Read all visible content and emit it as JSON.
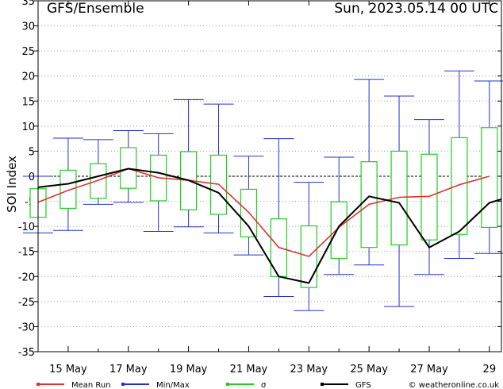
{
  "header": {
    "title": "GFS/Ensemble",
    "run": "Sun, 2023.05.14   00 UTC"
  },
  "chart_data": {
    "type": "line",
    "ylabel": "SOI Index",
    "xlabel": "",
    "ylim": [
      -35,
      35
    ],
    "yticks": [
      -35,
      -30,
      -25,
      -20,
      -15,
      -10,
      -5,
      0,
      5,
      10,
      15,
      20,
      25,
      30,
      35
    ],
    "x_range_days": [
      0,
      15.4
    ],
    "x_ticks": [
      {
        "label": "15 May",
        "day": 1
      },
      {
        "label": "17 May",
        "day": 3
      },
      {
        "label": "19 May",
        "day": 5
      },
      {
        "label": "21 May",
        "day": 7
      },
      {
        "label": "23 May",
        "day": 9
      },
      {
        "label": "25 May",
        "day": 11
      },
      {
        "label": "27 May",
        "day": 13
      },
      {
        "label": "29",
        "day": 15
      }
    ],
    "grid": true,
    "legend_position": "bottom",
    "colors": {
      "mean": "#dd3333",
      "minmax": "#2233cc",
      "sigma": "#22cc22",
      "gfs": "#000000"
    },
    "legend": [
      {
        "label": "Mean Run",
        "color": "#dd3333"
      },
      {
        "label": "Min/Max",
        "color": "#2233cc"
      },
      {
        "label": "σ",
        "color": "#22cc22"
      },
      {
        "label": "GFS",
        "color": "#000000"
      }
    ],
    "footer": "© weatheronline.co.uk",
    "series": [
      {
        "name": "Mean Run",
        "x": [
          0,
          1,
          2,
          3,
          4,
          5,
          6,
          7,
          8,
          9,
          10,
          11,
          12,
          13,
          14,
          15
        ],
        "values": [
          -5.2,
          -2.8,
          -0.8,
          1.5,
          -0.3,
          -0.8,
          -1.6,
          -7.2,
          -14.2,
          -16.0,
          -10.2,
          -5.6,
          -4.2,
          -4.0,
          -1.7,
          0.0
        ]
      },
      {
        "name": "GFS",
        "x": [
          0,
          1,
          2,
          3,
          4,
          5,
          6,
          7,
          8,
          9,
          10,
          11,
          12,
          13,
          14,
          15,
          15.4
        ],
        "values": [
          -2.2,
          -1.5,
          0.0,
          1.5,
          0.7,
          -0.8,
          -3.3,
          -10.0,
          -20.0,
          -21.3,
          -10.0,
          -4.0,
          -5.3,
          -14.2,
          -11.0,
          -5.3,
          -4.6
        ]
      }
    ],
    "boxes": [
      {
        "x": 0,
        "min": -11.3,
        "max": 0,
        "sigma_low": -8.2,
        "sigma_high": -2.5
      },
      {
        "x": 1,
        "min": -10.8,
        "max": 7.6,
        "sigma_low": -6.4,
        "sigma_high": 1.2
      },
      {
        "x": 2,
        "min": -5.6,
        "max": 7.3,
        "sigma_low": -4.4,
        "sigma_high": 2.5
      },
      {
        "x": 3,
        "min": -5.2,
        "max": 9.1,
        "sigma_low": -2.4,
        "sigma_high": 5.7
      },
      {
        "x": 4,
        "min": -11.0,
        "max": 8.5,
        "sigma_low": -4.9,
        "sigma_high": 4.2
      },
      {
        "x": 5,
        "min": -10.1,
        "max": 15.3,
        "sigma_low": -6.7,
        "sigma_high": 4.9
      },
      {
        "x": 6,
        "min": -11.3,
        "max": 14.4,
        "sigma_low": -7.6,
        "sigma_high": 4.2
      },
      {
        "x": 7,
        "min": -15.7,
        "max": 4.0,
        "sigma_low": -12.1,
        "sigma_high": -2.6
      },
      {
        "x": 8,
        "min": -24.0,
        "max": 7.5,
        "sigma_low": -20.0,
        "sigma_high": -8.5
      },
      {
        "x": 9,
        "min": -26.8,
        "max": -1.2,
        "sigma_low": -22.2,
        "sigma_high": -9.9
      },
      {
        "x": 10,
        "min": -19.6,
        "max": 3.8,
        "sigma_low": -16.4,
        "sigma_high": -5.1
      },
      {
        "x": 11,
        "min": -17.7,
        "max": 19.3,
        "sigma_low": -14.2,
        "sigma_high": 2.9
      },
      {
        "x": 12,
        "min": -26.0,
        "max": 16.0,
        "sigma_low": -13.7,
        "sigma_high": 5.0
      },
      {
        "x": 13,
        "min": -19.6,
        "max": 11.3,
        "sigma_low": -12.7,
        "sigma_high": 4.4
      },
      {
        "x": 14,
        "min": -16.4,
        "max": 21.0,
        "sigma_low": -11.6,
        "sigma_high": 7.7
      },
      {
        "x": 15,
        "min": -15.4,
        "max": 19.0,
        "sigma_low": -10.2,
        "sigma_high": 9.7
      }
    ]
  }
}
